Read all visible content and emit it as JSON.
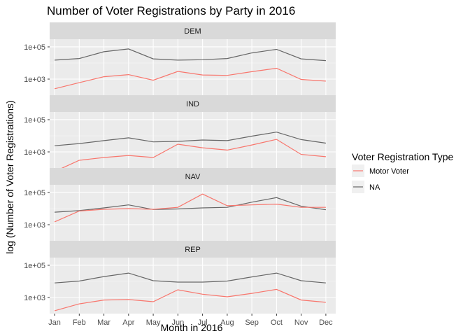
{
  "chart_data": {
    "type": "line",
    "title": "Number of Voter Registrations by Party in 2016",
    "xlabel": "Month in 2016",
    "ylabel": "log (Number of Voter Registrations)",
    "y_scale": "log10",
    "ylim": [
      100,
      300000
    ],
    "y_ticks": [
      1000,
      100000
    ],
    "y_tick_labels": [
      "1e+03",
      "1e+05"
    ],
    "categories": [
      "Jan",
      "Feb",
      "Mar",
      "Apr",
      "May",
      "Jun",
      "Jul",
      "Aug",
      "Sep",
      "Oct",
      "Nov",
      "Dec"
    ],
    "legend": {
      "title": "Voter Registration Type",
      "position": "right",
      "entries": [
        {
          "label": "Motor Voter",
          "color": "#F8766D"
        },
        {
          "label": "NA",
          "color": "#666666"
        }
      ]
    },
    "facets": [
      {
        "label": "DEM",
        "series": [
          {
            "name": "Motor Voter",
            "values": [
              250,
              600,
              1400,
              1900,
              850,
              3000,
              1800,
              1700,
              2900,
              4700,
              950,
              750
            ]
          },
          {
            "name": "NA",
            "values": [
              15000,
              19000,
              50000,
              75000,
              18000,
              15000,
              16000,
              19000,
              42000,
              70000,
              18000,
              14000
            ]
          }
        ]
      },
      {
        "label": "IND",
        "series": [
          {
            "name": "Motor Voter",
            "values": [
              60,
              300,
              450,
              600,
              450,
              3000,
              1800,
              1300,
              2700,
              6000,
              700,
              500
            ]
          },
          {
            "name": "NA",
            "values": [
              2400,
              3300,
              5000,
              7500,
              4200,
              4500,
              5500,
              5000,
              9500,
              17000,
              5800,
              3500
            ]
          }
        ]
      },
      {
        "label": "NAV",
        "series": [
          {
            "name": "Motor Voter",
            "values": [
              1500,
              7000,
              9000,
              10000,
              9000,
              12000,
              80000,
              15000,
              17000,
              19000,
              12000,
              12000
            ]
          },
          {
            "name": "NA",
            "values": [
              6000,
              7500,
              11000,
              17000,
              8800,
              9500,
              11000,
              12000,
              25000,
              48000,
              14000,
              8500
            ]
          }
        ]
      },
      {
        "label": "REP",
        "series": [
          {
            "name": "Motor Voter",
            "values": [
              150,
              400,
              700,
              750,
              550,
              3000,
              1600,
              1100,
              1800,
              3200,
              700,
              500
            ]
          },
          {
            "name": "NA",
            "values": [
              8000,
              10500,
              20000,
              33000,
              11000,
              9000,
              9000,
              10500,
              19000,
              33000,
              11000,
              8000
            ]
          }
        ]
      }
    ]
  }
}
